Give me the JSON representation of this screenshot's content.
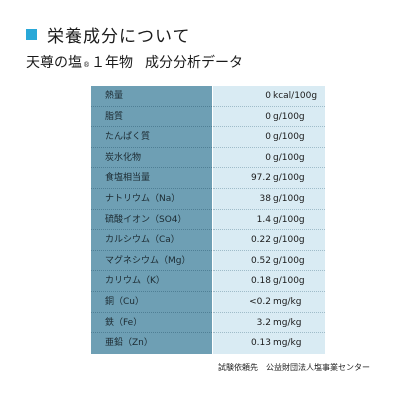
{
  "header": {
    "title": "栄養成分について",
    "accent_color": "#29a8d8"
  },
  "subtitle": {
    "product": "天尊の塩",
    "mark": "®",
    "years": "１年物",
    "label": "成分分析データ"
  },
  "table": {
    "label_bg": "#6e9fb4",
    "value_bg": "#d9ebf3",
    "rows": [
      {
        "name": "熱量",
        "value": "0",
        "unit": "kcal/100g"
      },
      {
        "name": "脂質",
        "value": "0",
        "unit": "g/100g"
      },
      {
        "name": "たんぱく質",
        "value": "0",
        "unit": "g/100g"
      },
      {
        "name": "炭水化物",
        "value": "0",
        "unit": "g/100g"
      },
      {
        "name": "食塩相当量",
        "value": "97.2",
        "unit": "g/100g"
      },
      {
        "name": "ナトリウム（Na）",
        "value": "38",
        "unit": "g/100g"
      },
      {
        "name": "硫酸イオン（SO4）",
        "value": "1.4",
        "unit": "g/100g"
      },
      {
        "name": "カルシウム（Ca）",
        "value": "0.22",
        "unit": "g/100g"
      },
      {
        "name": "マグネシウム（Mg）",
        "value": "0.52",
        "unit": "g/100g"
      },
      {
        "name": "カリウム（K）",
        "value": "0.18",
        "unit": "g/100g"
      },
      {
        "name": "銅（Cu）",
        "value": "<0.2",
        "unit": "mg/kg"
      },
      {
        "name": "鉄（Fe）",
        "value": "3.2",
        "unit": "mg/kg"
      },
      {
        "name": "亜鉛（Zn）",
        "value": "0.13",
        "unit": "mg/kg"
      }
    ]
  },
  "footer": {
    "text": "試験依頼先　公益財団法人塩事業センター"
  }
}
